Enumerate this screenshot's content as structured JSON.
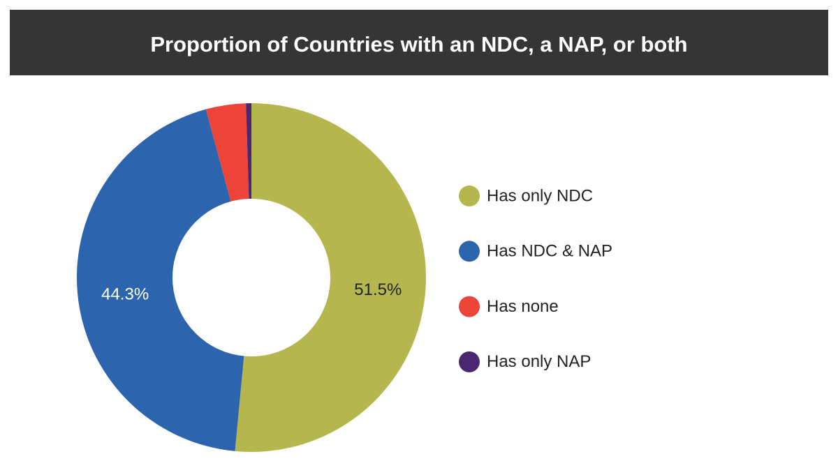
{
  "chart_data": {
    "type": "donut",
    "title": "Proportion of Countries with an NDC, a NAP, or both",
    "categories": [
      "Has only NDC",
      "Has NDC & NAP",
      "Has none",
      "Has only NAP"
    ],
    "values": [
      51.5,
      44.3,
      3.7,
      0.5
    ],
    "value_labels": [
      "51.5%",
      "44.3%",
      null,
      null
    ],
    "colors": [
      "#b5b74e",
      "#2c65ae",
      "#ec4438",
      "#4b2772"
    ],
    "legend": "right"
  }
}
